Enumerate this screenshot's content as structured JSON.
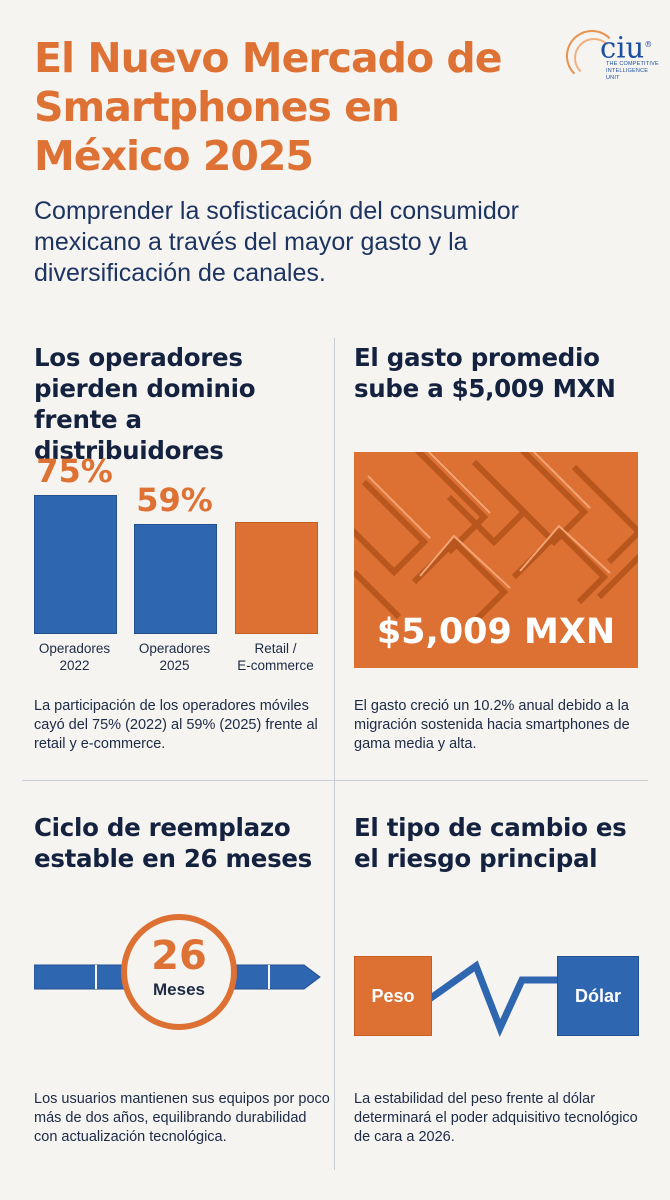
{
  "header": {
    "title": "El Nuevo Mercado de Smartphones en México 2025",
    "subtitle": "Comprender la sofisticación del consumidor mexicano a través del mayor gasto y la diversificación de canales."
  },
  "logo": {
    "word": "ciu",
    "mark": "®",
    "tagline": "THE COMPETITIVE INTELLIGENCE UNIT"
  },
  "colors": {
    "accent_orange": "#de7234",
    "accent_blue": "#2f66b0",
    "heading_navy": "#14223f",
    "background": "#f5f4f1"
  },
  "panel_operators": {
    "title": "Los operadores pierden dominio frente a distribuidores",
    "description": "La participación de los operadores móviles cayó del 75% (2022) al 59% (2025) frente al retail y e-commerce."
  },
  "chart_data": {
    "type": "bar",
    "categories": [
      "Operadores 2022",
      "Operadores 2025",
      "Retail / E-commerce"
    ],
    "values": [
      75,
      59,
      null
    ],
    "value_labels": [
      "75%",
      "59%",
      ""
    ],
    "label_lines": [
      [
        "Operadores",
        "2022"
      ],
      [
        "Operadores",
        "2025"
      ],
      [
        "Retail /",
        "E-commerce"
      ]
    ],
    "bar_colors": [
      "#2f66b0",
      "#2f66b0",
      "#dd7033"
    ],
    "title": "",
    "xlabel": "",
    "ylabel": "",
    "ylim": [
      0,
      100
    ],
    "grid": false
  },
  "panel_spend": {
    "title": "El gasto promedio sube a $5,009 MXN",
    "value": "$5,009 MXN",
    "description": "El gasto creció un 10.2% anual debido a la migración sostenida hacia smartphones de gama media y alta."
  },
  "panel_cycle": {
    "title": "Ciclo de reemplazo estable en 26 meses",
    "number": "26",
    "unit": "Meses",
    "description": "Los usuarios mantienen sus equipos por poco más de dos años, equilibrando durabilidad con actualización tecnológica."
  },
  "panel_fx": {
    "title": "El tipo de cambio es el riesgo principal",
    "from_label": "Peso",
    "to_label": "Dólar",
    "description": "La estabilidad del peso frente al dólar determinará el poder adquisitivo tecnológico de cara a 2026."
  },
  "icons": [
    "ciu-logo-icon",
    "geometric-pattern",
    "timeline-arrow-icon",
    "zigzag-line-icon"
  ]
}
